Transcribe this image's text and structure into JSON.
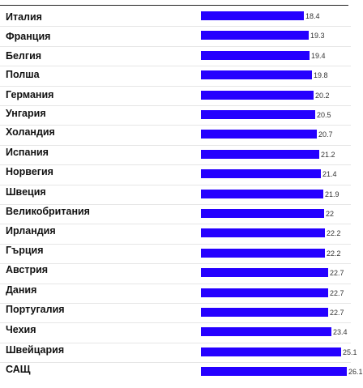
{
  "chart_data": {
    "type": "bar",
    "orientation": "horizontal",
    "title": "",
    "xlabel": "",
    "ylabel": "",
    "xlim": [
      0,
      26.1
    ],
    "bar_color": "#2500ff",
    "grid": false,
    "categories": [
      "Италия",
      "Франция",
      "Белгия",
      "Полша",
      "Германия",
      "Унгария",
      "Холандия",
      "Испания",
      "Норвегия",
      "Швеция",
      "Великобритания",
      "Ирландия",
      "Гърция",
      "Австрия",
      "Дания",
      "Португалия",
      "Чехия",
      "Швейцария",
      "САЩ"
    ],
    "values": [
      18.4,
      19.3,
      19.4,
      19.8,
      20.2,
      20.5,
      20.7,
      21.2,
      21.4,
      21.9,
      22,
      22.2,
      22.2,
      22.7,
      22.7,
      22.7,
      23.4,
      25.1,
      26.1
    ],
    "value_labels": [
      "18.4",
      "19.3",
      "19.4",
      "19.8",
      "20.2",
      "20.5",
      "20.7",
      "21.2",
      "21.4",
      "21.9",
      "22",
      "22.2",
      "22.2",
      "22.7",
      "22.7",
      "22.7",
      "23.4",
      "25.1",
      "26.1"
    ]
  }
}
